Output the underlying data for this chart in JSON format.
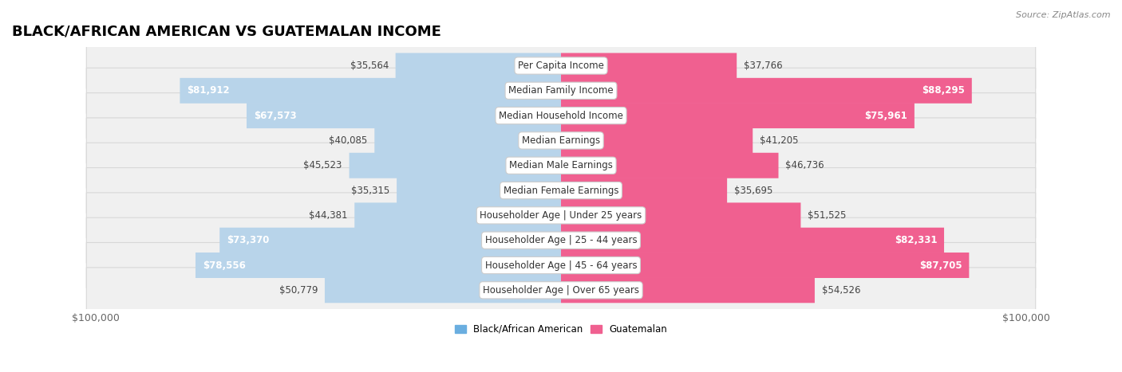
{
  "title": "BLACK/AFRICAN AMERICAN VS GUATEMALAN INCOME",
  "source": "Source: ZipAtlas.com",
  "categories": [
    "Per Capita Income",
    "Median Family Income",
    "Median Household Income",
    "Median Earnings",
    "Median Male Earnings",
    "Median Female Earnings",
    "Householder Age | Under 25 years",
    "Householder Age | 25 - 44 years",
    "Householder Age | 45 - 64 years",
    "Householder Age | Over 65 years"
  ],
  "left_values": [
    35564,
    81912,
    67573,
    40085,
    45523,
    35315,
    44381,
    73370,
    78556,
    50779
  ],
  "right_values": [
    37766,
    88295,
    75961,
    41205,
    46736,
    35695,
    51525,
    82331,
    87705,
    54526
  ],
  "left_labels": [
    "$35,564",
    "$81,912",
    "$67,573",
    "$40,085",
    "$45,523",
    "$35,315",
    "$44,381",
    "$73,370",
    "$78,556",
    "$50,779"
  ],
  "right_labels": [
    "$37,766",
    "$88,295",
    "$75,961",
    "$41,205",
    "$46,736",
    "$35,695",
    "$51,525",
    "$82,331",
    "$87,705",
    "$54,526"
  ],
  "max_value": 100000,
  "left_color_strong": "#6aaee0",
  "left_color_weak": "#b8d4ea",
  "right_color_strong": "#f06090",
  "right_color_weak": "#f5aec8",
  "row_bg_color": "#f0f0f0",
  "row_border_color": "#d8d8d8",
  "legend_left": "Black/African American",
  "legend_right": "Guatemalan",
  "title_fontsize": 13,
  "label_fontsize": 8.5,
  "axis_label_fontsize": 9,
  "strong_threshold": 55000
}
